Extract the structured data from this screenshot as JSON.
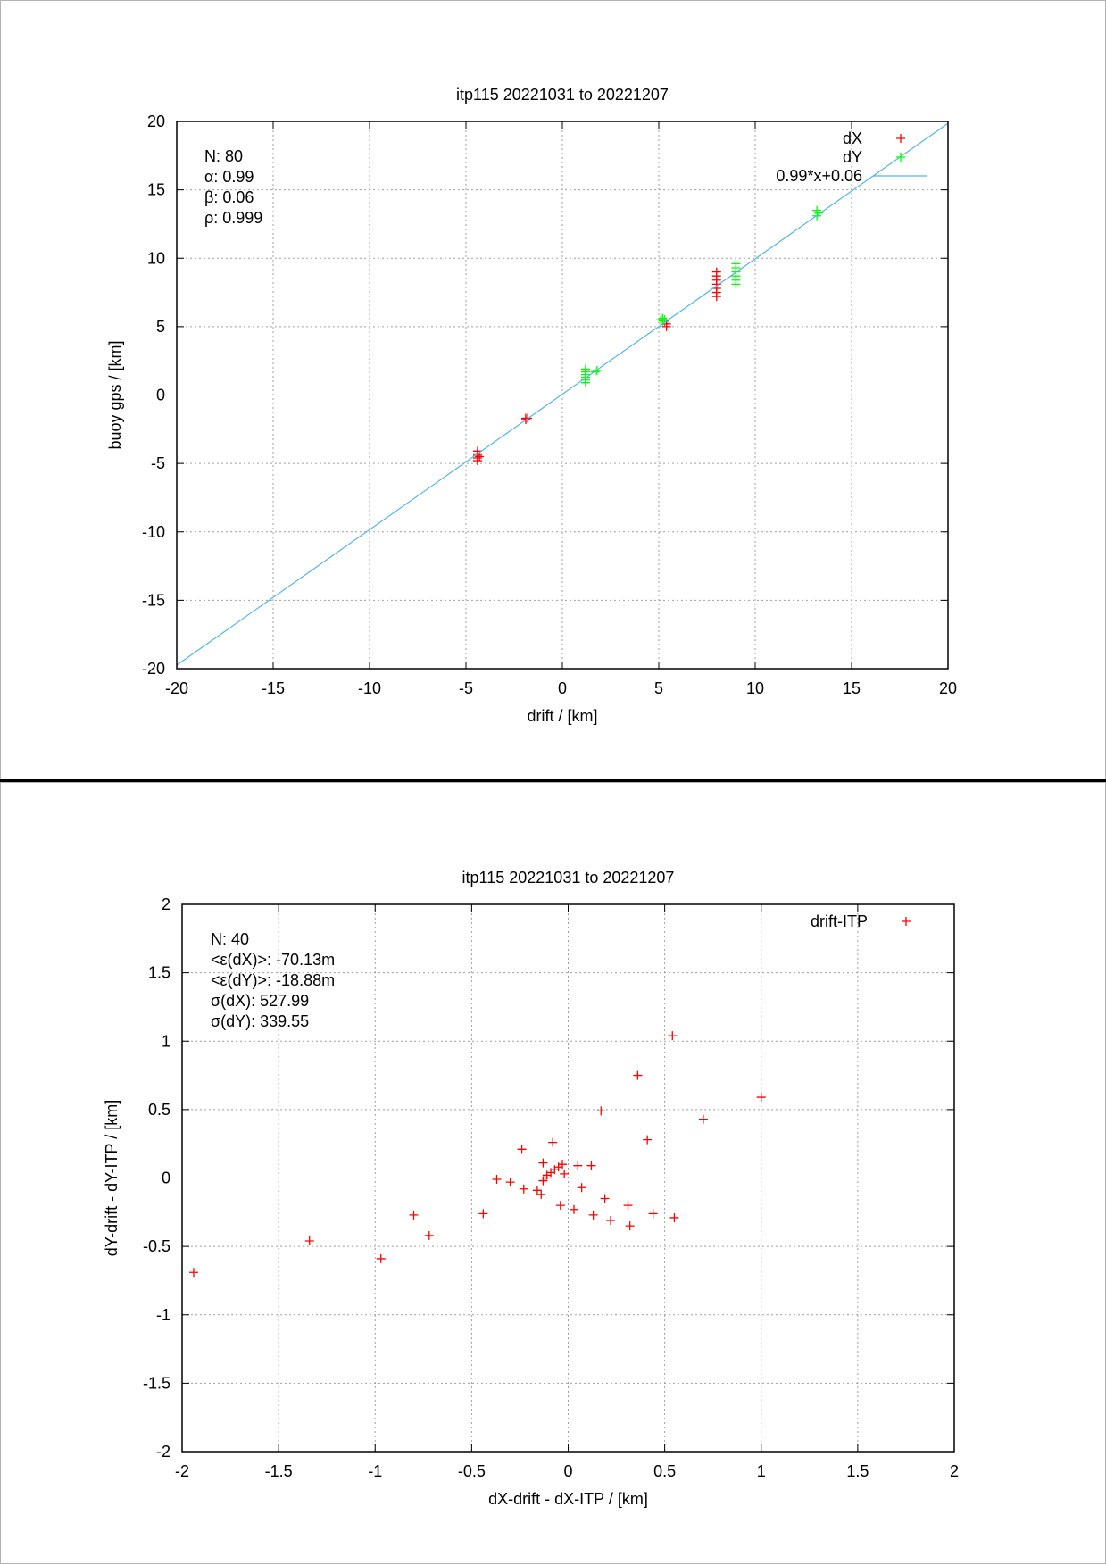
{
  "chart_data": [
    {
      "type": "scatter",
      "title": "itp115 20221031 to 20221207",
      "xlabel": "drift / [km]",
      "ylabel": "buoy gps / [km]",
      "xlim": [
        -20,
        20
      ],
      "ylim": [
        -20,
        20
      ],
      "x_ticks": [
        -20,
        -15,
        -10,
        -5,
        0,
        5,
        10,
        15,
        20
      ],
      "y_ticks": [
        -20,
        -15,
        -10,
        -5,
        0,
        5,
        10,
        15,
        20
      ],
      "x_tick_labels": [
        "-20",
        "-15",
        "-10",
        "-5",
        "0",
        "5",
        "10",
        "15",
        "20"
      ],
      "y_tick_labels": [
        "-20",
        "-15",
        "-10",
        "-5",
        "0",
        "5",
        "10",
        "15",
        "20"
      ],
      "grid": true,
      "legend_position": "top-right",
      "stats": [
        "N: 80",
        "α: 0.99",
        "β: 0.06",
        "ρ: 0.999"
      ],
      "series": [
        {
          "name": "dX",
          "color": "#ff0000",
          "marker": "+",
          "points": [
            [
              -4.4,
              -4.1
            ],
            [
              -4.4,
              -4.3
            ],
            [
              -4.4,
              -4.4
            ],
            [
              -4.3,
              -4.5
            ],
            [
              -4.4,
              -4.6
            ],
            [
              -4.4,
              -4.8
            ],
            [
              -1.9,
              -1.7
            ],
            [
              -1.8,
              -1.7
            ],
            [
              -1.9,
              -1.8
            ],
            [
              5.4,
              5.2
            ],
            [
              5.4,
              5.0
            ],
            [
              5.3,
              5.4
            ],
            [
              8.0,
              9.0
            ],
            [
              8.0,
              8.7
            ],
            [
              8.0,
              8.4
            ],
            [
              8.0,
              8.1
            ],
            [
              8.0,
              7.8
            ],
            [
              8.0,
              7.5
            ],
            [
              8.0,
              7.2
            ]
          ]
        },
        {
          "name": "dY",
          "color": "#00ff00",
          "marker": "+",
          "points": [
            [
              1.2,
              1.9
            ],
            [
              1.2,
              1.7
            ],
            [
              1.2,
              1.5
            ],
            [
              1.2,
              1.3
            ],
            [
              1.2,
              1.1
            ],
            [
              1.2,
              0.9
            ],
            [
              1.7,
              1.7
            ],
            [
              1.8,
              1.8
            ],
            [
              5.2,
              5.6
            ],
            [
              5.3,
              5.5
            ],
            [
              5.1,
              5.5
            ],
            [
              5.2,
              5.4
            ],
            [
              9.0,
              9.6
            ],
            [
              9.0,
              9.3
            ],
            [
              9.0,
              9.0
            ],
            [
              9.0,
              8.7
            ],
            [
              9.0,
              8.4
            ],
            [
              9.0,
              8.1
            ],
            [
              13.2,
              13.5
            ],
            [
              13.3,
              13.3
            ],
            [
              13.2,
              13.1
            ]
          ]
        },
        {
          "name": "0.99*x+0.06",
          "color": "#56b4e9",
          "type": "line",
          "slope": 0.99,
          "intercept": 0.06
        }
      ]
    },
    {
      "type": "scatter",
      "title": "itp115 20221031 to 20221207",
      "xlabel": "dX-drift - dX-ITP / [km]",
      "ylabel": "dY-drift - dY-ITP / [km]",
      "xlim": [
        -2,
        2
      ],
      "ylim": [
        -2,
        2
      ],
      "x_ticks": [
        -2,
        -1.5,
        -1,
        -0.5,
        0,
        0.5,
        1,
        1.5,
        2
      ],
      "y_ticks": [
        -2,
        -1.5,
        -1,
        -0.5,
        0,
        0.5,
        1,
        1.5,
        2
      ],
      "x_tick_labels": [
        "-2",
        "-1.5",
        "-1",
        "-0.5",
        "0",
        "0.5",
        "1",
        "1.5",
        "2"
      ],
      "y_tick_labels": [
        "-2",
        "-1.5",
        "-1",
        "-0.5",
        "0",
        "0.5",
        "1",
        "1.5",
        "2"
      ],
      "grid": true,
      "legend_position": "top-right",
      "stats": [
        "N: 40",
        "<ε(dX)>:  -70.13m",
        "<ε(dY)>: -18.88m",
        "σ(dX):  527.99",
        "σ(dY):  339.55"
      ],
      "series": [
        {
          "name": "drift-ITP",
          "color": "#ff0000",
          "marker": "+",
          "points": [
            [
              -1.94,
              -0.69
            ],
            [
              -1.34,
              -0.46
            ],
            [
              -0.97,
              -0.59
            ],
            [
              -0.8,
              -0.27
            ],
            [
              -0.72,
              -0.42
            ],
            [
              -0.44,
              -0.26
            ],
            [
              -0.37,
              -0.01
            ],
            [
              -0.3,
              -0.03
            ],
            [
              -0.24,
              0.21
            ],
            [
              -0.23,
              -0.08
            ],
            [
              -0.16,
              -0.09
            ],
            [
              -0.14,
              -0.12
            ],
            [
              -0.13,
              0.11
            ],
            [
              -0.13,
              -0.02
            ],
            [
              -0.12,
              0.0
            ],
            [
              -0.11,
              0.02
            ],
            [
              -0.09,
              0.04
            ],
            [
              -0.07,
              0.06
            ],
            [
              -0.08,
              0.26
            ],
            [
              -0.05,
              0.08
            ],
            [
              -0.04,
              -0.2
            ],
            [
              -0.03,
              0.1
            ],
            [
              -0.02,
              0.03
            ],
            [
              0.03,
              -0.23
            ],
            [
              0.07,
              -0.07
            ],
            [
              0.12,
              0.09
            ],
            [
              0.13,
              -0.27
            ],
            [
              0.17,
              0.49
            ],
            [
              0.19,
              -0.15
            ],
            [
              0.22,
              -0.31
            ],
            [
              0.31,
              -0.2
            ],
            [
              0.32,
              -0.35
            ],
            [
              0.36,
              0.75
            ],
            [
              0.41,
              0.28
            ],
            [
              0.44,
              -0.26
            ],
            [
              0.54,
              1.04
            ],
            [
              0.55,
              -0.29
            ],
            [
              0.7,
              0.43
            ],
            [
              1.0,
              0.59
            ],
            [
              0.05,
              0.09
            ]
          ]
        }
      ]
    }
  ]
}
